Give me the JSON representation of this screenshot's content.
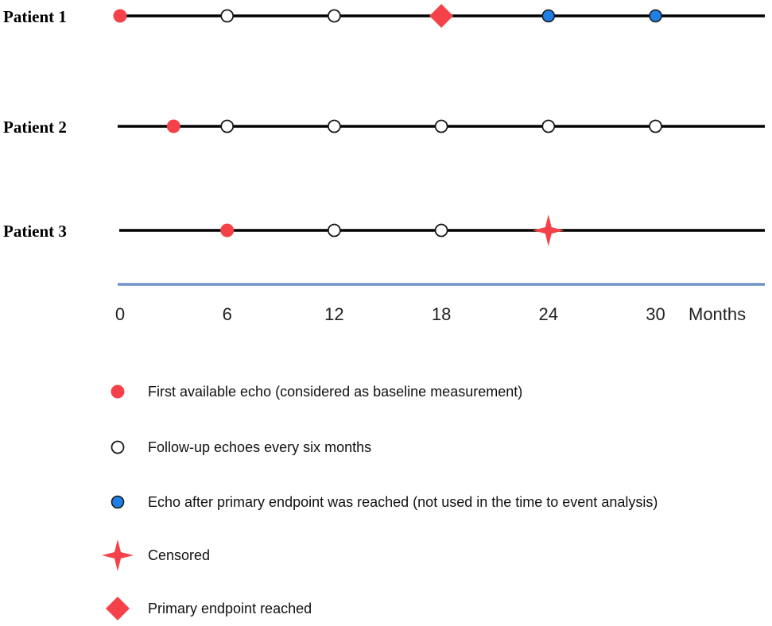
{
  "colors": {
    "baseline": "#f5424a",
    "followup_fill": "#ffffff",
    "followup_stroke": "#1a1a1a",
    "post_endpoint": "#1e7fe6",
    "censored": "#f5424a",
    "endpoint": "#f5424a",
    "timeline": "#000000",
    "axis": "#6f93c9"
  },
  "axis": {
    "ticks": [
      "0",
      "6",
      "12",
      "18",
      "24",
      "30"
    ],
    "unit_label": "Months"
  },
  "patients": [
    {
      "label": "Patient 1",
      "events": [
        {
          "month": 0,
          "kind": "baseline"
        },
        {
          "month": 6,
          "kind": "followup"
        },
        {
          "month": 12,
          "kind": "followup"
        },
        {
          "month": 18,
          "kind": "endpoint"
        },
        {
          "month": 24,
          "kind": "post_endpoint"
        },
        {
          "month": 30,
          "kind": "post_endpoint"
        }
      ]
    },
    {
      "label": "Patient 2",
      "events": [
        {
          "month": 3,
          "kind": "baseline"
        },
        {
          "month": 6,
          "kind": "followup"
        },
        {
          "month": 12,
          "kind": "followup"
        },
        {
          "month": 18,
          "kind": "followup"
        },
        {
          "month": 24,
          "kind": "followup"
        },
        {
          "month": 30,
          "kind": "followup"
        }
      ]
    },
    {
      "label": "Patient 3",
      "events": [
        {
          "month": 6,
          "kind": "baseline"
        },
        {
          "month": 12,
          "kind": "followup"
        },
        {
          "month": 18,
          "kind": "followup"
        },
        {
          "month": 24,
          "kind": "censored"
        }
      ]
    }
  ],
  "legend": [
    {
      "kind": "baseline",
      "icon": "red-circle-icon",
      "label": "First available echo (considered as baseline measurement)"
    },
    {
      "kind": "followup",
      "icon": "white-circle-icon",
      "label": "Follow-up echoes every six months"
    },
    {
      "kind": "post_endpoint",
      "icon": "blue-circle-icon",
      "label": "Echo after primary endpoint was reached (not used in the time to event analysis)"
    },
    {
      "kind": "censored",
      "icon": "star-icon",
      "label": "Censored"
    },
    {
      "kind": "endpoint",
      "icon": "diamond-icon",
      "label": "Primary endpoint reached"
    }
  ]
}
